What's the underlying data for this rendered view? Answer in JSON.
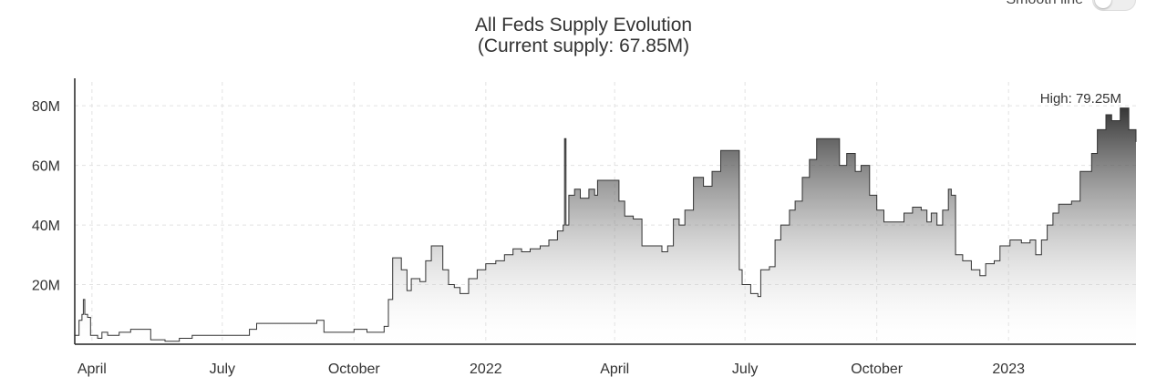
{
  "toggle": {
    "label": "Smooth line"
  },
  "chart_data": {
    "type": "area",
    "title": "All Feds Supply Evolution",
    "subtitle": "(Current supply: 67.85M)",
    "ylim": [
      0,
      88
    ],
    "y_unit": "M",
    "x_range": [
      "2021-03-20",
      "2023-03-31"
    ],
    "grid": true,
    "y_ticks": [
      {
        "value": 20,
        "label": "20M"
      },
      {
        "value": 40,
        "label": "40M"
      },
      {
        "value": 60,
        "label": "60M"
      },
      {
        "value": 80,
        "label": "80M"
      }
    ],
    "x_ticks": [
      {
        "date": "2021-04-01",
        "label": "April"
      },
      {
        "date": "2021-07-01",
        "label": "July"
      },
      {
        "date": "2021-10-01",
        "label": "October"
      },
      {
        "date": "2022-01-01",
        "label": "2022"
      },
      {
        "date": "2022-04-01",
        "label": "April"
      },
      {
        "date": "2022-07-01",
        "label": "July"
      },
      {
        "date": "2022-10-01",
        "label": "October"
      },
      {
        "date": "2023-01-01",
        "label": "2023"
      }
    ],
    "high": {
      "label": "High: 79.25M",
      "value": 79.25
    },
    "series": [
      {
        "values": [
          [
            "2021-03-20",
            3
          ],
          [
            "2021-03-23",
            8
          ],
          [
            "2021-03-25",
            10
          ],
          [
            "2021-03-26",
            15
          ],
          [
            "2021-03-27",
            10
          ],
          [
            "2021-03-29",
            9
          ],
          [
            "2021-03-31",
            3
          ],
          [
            "2021-04-05",
            2
          ],
          [
            "2021-04-08",
            4
          ],
          [
            "2021-04-12",
            3
          ],
          [
            "2021-04-20",
            4
          ],
          [
            "2021-04-28",
            5
          ],
          [
            "2021-05-12",
            1.5
          ],
          [
            "2021-05-22",
            1
          ],
          [
            "2021-06-01",
            2
          ],
          [
            "2021-06-10",
            3
          ],
          [
            "2021-06-25",
            3
          ],
          [
            "2021-07-05",
            3
          ],
          [
            "2021-07-15",
            3
          ],
          [
            "2021-07-20",
            5
          ],
          [
            "2021-07-25",
            7
          ],
          [
            "2021-08-20",
            7
          ],
          [
            "2021-09-05",
            8
          ],
          [
            "2021-09-10",
            4
          ],
          [
            "2021-09-25",
            4
          ],
          [
            "2021-10-01",
            5
          ],
          [
            "2021-10-10",
            4
          ],
          [
            "2021-10-20",
            4
          ],
          [
            "2021-10-22",
            6
          ],
          [
            "2021-10-25",
            15
          ],
          [
            "2021-10-28",
            29
          ],
          [
            "2021-11-03",
            25
          ],
          [
            "2021-11-07",
            18
          ],
          [
            "2021-11-10",
            22
          ],
          [
            "2021-11-16",
            21
          ],
          [
            "2021-11-20",
            28
          ],
          [
            "2021-11-24",
            33
          ],
          [
            "2021-12-02",
            25
          ],
          [
            "2021-12-06",
            20
          ],
          [
            "2021-12-10",
            19
          ],
          [
            "2021-12-14",
            17
          ],
          [
            "2021-12-20",
            22
          ],
          [
            "2021-12-26",
            25
          ],
          [
            "2022-01-01",
            27
          ],
          [
            "2022-01-08",
            28
          ],
          [
            "2022-01-14",
            30
          ],
          [
            "2022-01-20",
            32
          ],
          [
            "2022-01-26",
            31
          ],
          [
            "2022-02-01",
            32
          ],
          [
            "2022-02-08",
            33
          ],
          [
            "2022-02-14",
            35
          ],
          [
            "2022-02-20",
            38
          ],
          [
            "2022-02-24",
            40
          ],
          [
            "2022-02-25",
            69
          ],
          [
            "2022-02-26",
            40
          ],
          [
            "2022-02-28",
            50
          ],
          [
            "2022-03-04",
            52
          ],
          [
            "2022-03-08",
            49
          ],
          [
            "2022-03-14",
            52
          ],
          [
            "2022-03-18",
            50
          ],
          [
            "2022-03-20",
            55
          ],
          [
            "2022-04-01",
            55
          ],
          [
            "2022-04-04",
            48
          ],
          [
            "2022-04-08",
            43
          ],
          [
            "2022-04-14",
            42
          ],
          [
            "2022-04-20",
            33
          ],
          [
            "2022-05-04",
            31
          ],
          [
            "2022-05-08",
            33
          ],
          [
            "2022-05-12",
            42
          ],
          [
            "2022-05-16",
            40
          ],
          [
            "2022-05-20",
            45
          ],
          [
            "2022-05-26",
            56
          ],
          [
            "2022-06-02",
            53
          ],
          [
            "2022-06-08",
            58
          ],
          [
            "2022-06-14",
            65
          ],
          [
            "2022-06-20",
            65
          ],
          [
            "2022-06-25",
            65
          ],
          [
            "2022-06-27",
            25
          ],
          [
            "2022-06-29",
            20
          ],
          [
            "2022-07-05",
            17
          ],
          [
            "2022-07-10",
            16
          ],
          [
            "2022-07-12",
            25
          ],
          [
            "2022-07-18",
            26
          ],
          [
            "2022-07-22",
            35
          ],
          [
            "2022-07-26",
            40
          ],
          [
            "2022-08-01",
            45
          ],
          [
            "2022-08-05",
            48
          ],
          [
            "2022-08-10",
            56
          ],
          [
            "2022-08-15",
            62
          ],
          [
            "2022-08-20",
            69
          ],
          [
            "2022-09-01",
            69
          ],
          [
            "2022-09-05",
            60
          ],
          [
            "2022-09-10",
            64
          ],
          [
            "2022-09-16",
            58
          ],
          [
            "2022-09-20",
            60
          ],
          [
            "2022-09-26",
            50
          ],
          [
            "2022-10-01",
            45
          ],
          [
            "2022-10-06",
            41
          ],
          [
            "2022-10-16",
            41
          ],
          [
            "2022-10-20",
            44
          ],
          [
            "2022-10-26",
            46
          ],
          [
            "2022-11-01",
            45
          ],
          [
            "2022-11-05",
            41
          ],
          [
            "2022-11-08",
            44
          ],
          [
            "2022-11-12",
            40
          ],
          [
            "2022-11-16",
            45
          ],
          [
            "2022-11-20",
            52
          ],
          [
            "2022-11-22",
            50
          ],
          [
            "2022-11-25",
            30
          ],
          [
            "2022-11-30",
            28
          ],
          [
            "2022-12-06",
            25
          ],
          [
            "2022-12-12",
            23
          ],
          [
            "2022-12-16",
            27
          ],
          [
            "2022-12-22",
            28
          ],
          [
            "2022-12-26",
            33
          ],
          [
            "2023-01-02",
            35
          ],
          [
            "2023-01-10",
            34
          ],
          [
            "2023-01-16",
            35
          ],
          [
            "2023-01-20",
            30
          ],
          [
            "2023-01-24",
            35
          ],
          [
            "2023-01-28",
            40
          ],
          [
            "2023-02-01",
            44
          ],
          [
            "2023-02-05",
            47
          ],
          [
            "2023-02-14",
            48
          ],
          [
            "2023-02-20",
            58
          ],
          [
            "2023-02-28",
            64
          ],
          [
            "2023-03-04",
            72
          ],
          [
            "2023-03-10",
            77
          ],
          [
            "2023-03-14",
            75
          ],
          [
            "2023-03-20",
            79.25
          ],
          [
            "2023-03-26",
            72
          ],
          [
            "2023-03-31",
            67.85
          ]
        ]
      }
    ]
  }
}
